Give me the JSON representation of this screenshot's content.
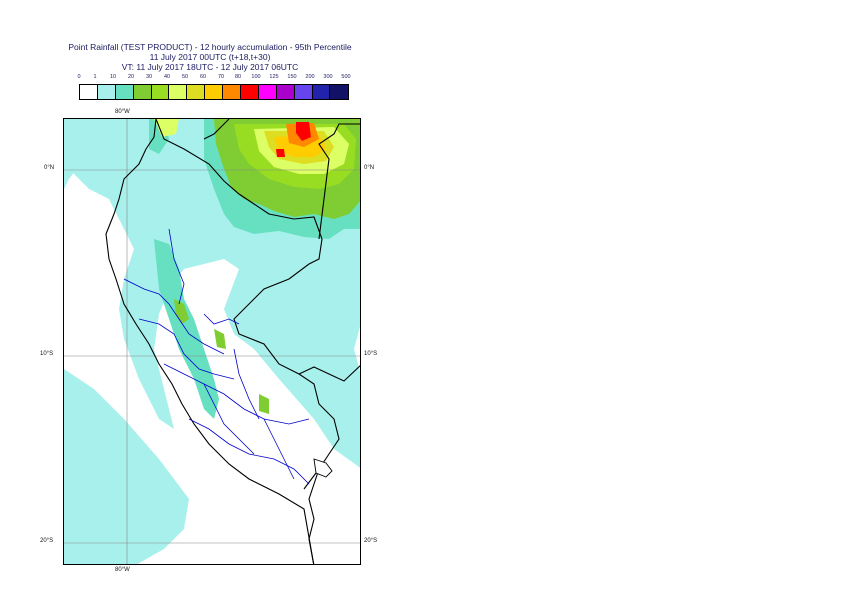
{
  "title": {
    "line1": "Point Rainfall (TEST PRODUCT) - 12 hourly accumulation - 95th Percentile",
    "line2": "11 July 2017 00UTC (t+18,t+30)",
    "line3": "VT: 11 July 2017 18UTC - 12 July 2017 06UTC"
  },
  "legend": {
    "ticks": [
      "0",
      "1",
      "10",
      "20",
      "30",
      "40",
      "50",
      "60",
      "70",
      "80",
      "100",
      "125",
      "150",
      "200",
      "300",
      "500"
    ],
    "colors": [
      "#ffffff",
      "#a8f0ec",
      "#66e0c0",
      "#7fcc33",
      "#99dd22",
      "#ddff66",
      "#dddd22",
      "#ffcc00",
      "#ff8800",
      "#ff0000",
      "#ff00ff",
      "#aa00cc",
      "#6644ee",
      "#2222aa",
      "#111166"
    ]
  },
  "axes": {
    "top_lon": "80°W",
    "bottom_lon": "80°W",
    "left_lats": [
      "0°N",
      "10°S",
      "20°S"
    ],
    "right_lats": [
      "0°N",
      "10°S",
      "20°S"
    ]
  }
}
